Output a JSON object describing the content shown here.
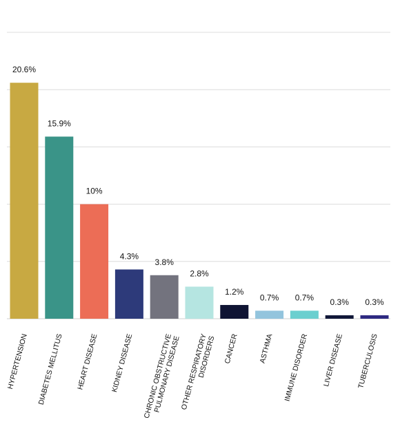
{
  "chart_data": {
    "type": "bar",
    "title": "",
    "xlabel": "",
    "ylabel": "",
    "ylim": [
      0,
      25
    ],
    "grid": true,
    "y_tick_labels_shown": false,
    "categories": [
      [
        "HYPERTENSION"
      ],
      [
        "DIABETES MELLITUS"
      ],
      [
        "HEART DISEASE"
      ],
      [
        "KIDNEY DISEASE"
      ],
      [
        "CHRONIC OBSTRUCTIVE",
        "PULMONARY DISEASE"
      ],
      [
        "OTHER RESPIRATORY",
        "DISORDERS"
      ],
      [
        "CANCER"
      ],
      [
        "ASTHMA"
      ],
      [
        "IMMUNE DISORDER"
      ],
      [
        "LIVER DISEASE"
      ],
      [
        "TUBERCULOSIS"
      ]
    ],
    "values": [
      20.6,
      15.9,
      10,
      4.3,
      3.8,
      2.8,
      1.2,
      0.7,
      0.7,
      0.3,
      0.3
    ],
    "value_labels": [
      "20.6%",
      "15.9%",
      "10%",
      "4.3%",
      "3.8%",
      "2.8%",
      "1.2%",
      "0.7%",
      "0.7%",
      "0.3%",
      "0.3%"
    ],
    "colors": [
      "#c8a942",
      "#3a9488",
      "#ec6d56",
      "#2d3a7a",
      "#73737e",
      "#b5e5e1",
      "#0f1433",
      "#93c4dd",
      "#6bcfcf",
      "#111838",
      "#2f2a82"
    ]
  }
}
